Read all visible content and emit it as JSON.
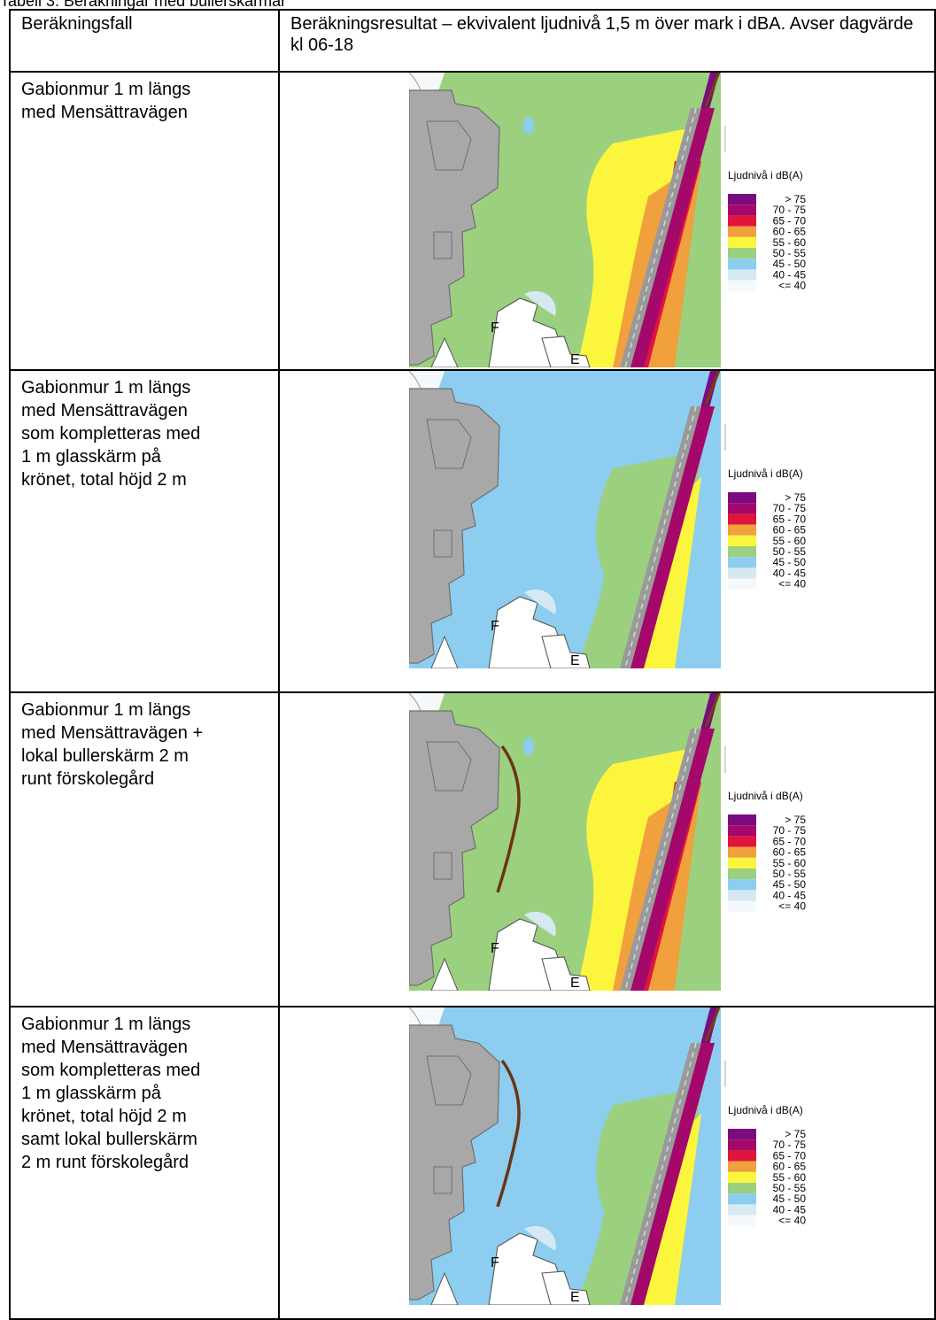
{
  "caption": "Tabell 3. Beräkningar med bullerskärmar",
  "table": {
    "headers": [
      "Beräkningsfall",
      "Beräkningsresultat – ekvivalent ljudnivå 1,5 m över mark i dBA. Avser dagvärde kl 06-18"
    ],
    "rows": [
      {
        "case": "Gabionmur 1 m längs\nmed Mensättravägen",
        "local_screen": false,
        "glass_screen": false
      },
      {
        "case": "Gabionmur 1 m längs\nmed Mensättravägen\nsom kompletteras med\n1 m glasskärm på\nkrönet, total höjd 2 m",
        "local_screen": false,
        "glass_screen": true
      },
      {
        "case": "Gabionmur 1 m längs\nmed Mensättravägen +\nlokal bullerskärm 2 m\nrunt förskolegård",
        "local_screen": true,
        "glass_screen": false
      },
      {
        "case": "Gabionmur 1 m längs\nmed Mensättravägen\nsom kompletteras med\n1 m glasskärm på\nkrönet, total höjd 2 m\nsamt lokal bullerskärm\n2 m runt förskolegård",
        "local_screen": true,
        "glass_screen": true
      }
    ]
  },
  "map": {
    "labels": {
      "building_f": "F",
      "building_e": "E"
    }
  },
  "legend": {
    "title": "Ljudnivå i dB(A)",
    "items": [
      {
        "label": ">  75",
        "color": "#7b0c7f"
      },
      {
        "label": "70  -  75",
        "color": "#a4086b"
      },
      {
        "label": "65  -  70",
        "color": "#e0143c"
      },
      {
        "label": "60  -  65",
        "color": "#f0a03c"
      },
      {
        "label": "55  -  60",
        "color": "#fbf63d"
      },
      {
        "label": "50  -  55",
        "color": "#9bd07f"
      },
      {
        "label": "45  -  50",
        "color": "#8ccdf0"
      },
      {
        "label": "40  -  45",
        "color": "#d6e9f2"
      },
      {
        "label": "<=  40",
        "color": "#f5f9fb"
      }
    ]
  }
}
